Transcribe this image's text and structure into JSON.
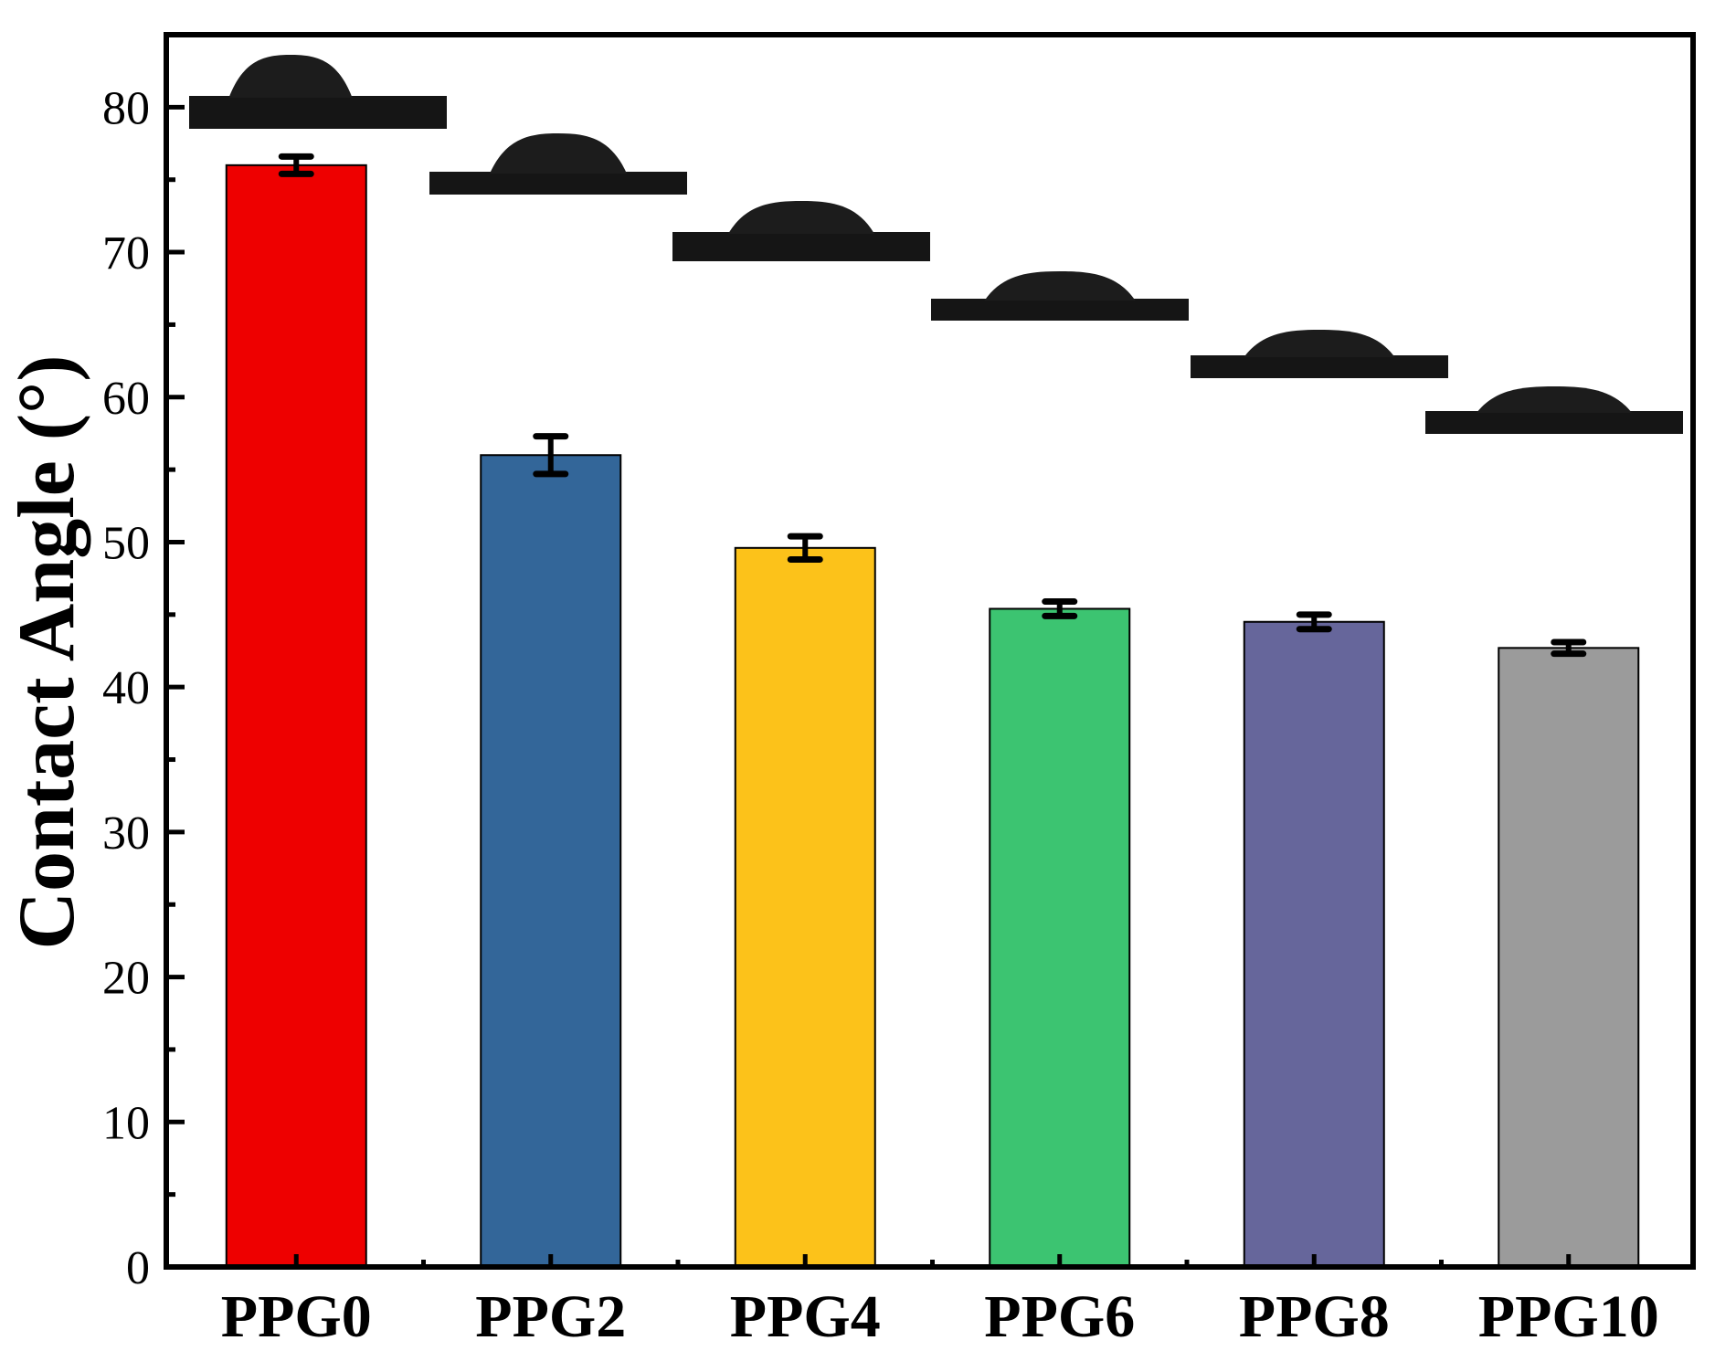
{
  "chart_data": {
    "type": "bar",
    "title": "",
    "xlabel": "",
    "ylabel": "Contact Angle (°)",
    "categories": [
      "PPG0",
      "PPG2",
      "PPG4",
      "PPG6",
      "PPG8",
      "PPG10"
    ],
    "values": [
      76.0,
      56.0,
      49.6,
      45.4,
      44.5,
      42.7
    ],
    "errors": [
      0.6,
      1.3,
      0.8,
      0.5,
      0.5,
      0.4
    ],
    "bar_colors": [
      "#EE0000",
      "#336699",
      "#FCC21A",
      "#3CC471",
      "#66669B",
      "#9B9B9B"
    ],
    "ylim": [
      0,
      85
    ],
    "yticks": [
      0,
      10,
      20,
      30,
      40,
      50,
      60,
      70,
      80
    ],
    "grid": false,
    "legend": "none",
    "insets": {
      "description_icon": "water-droplet-photo",
      "count": 6
    }
  }
}
